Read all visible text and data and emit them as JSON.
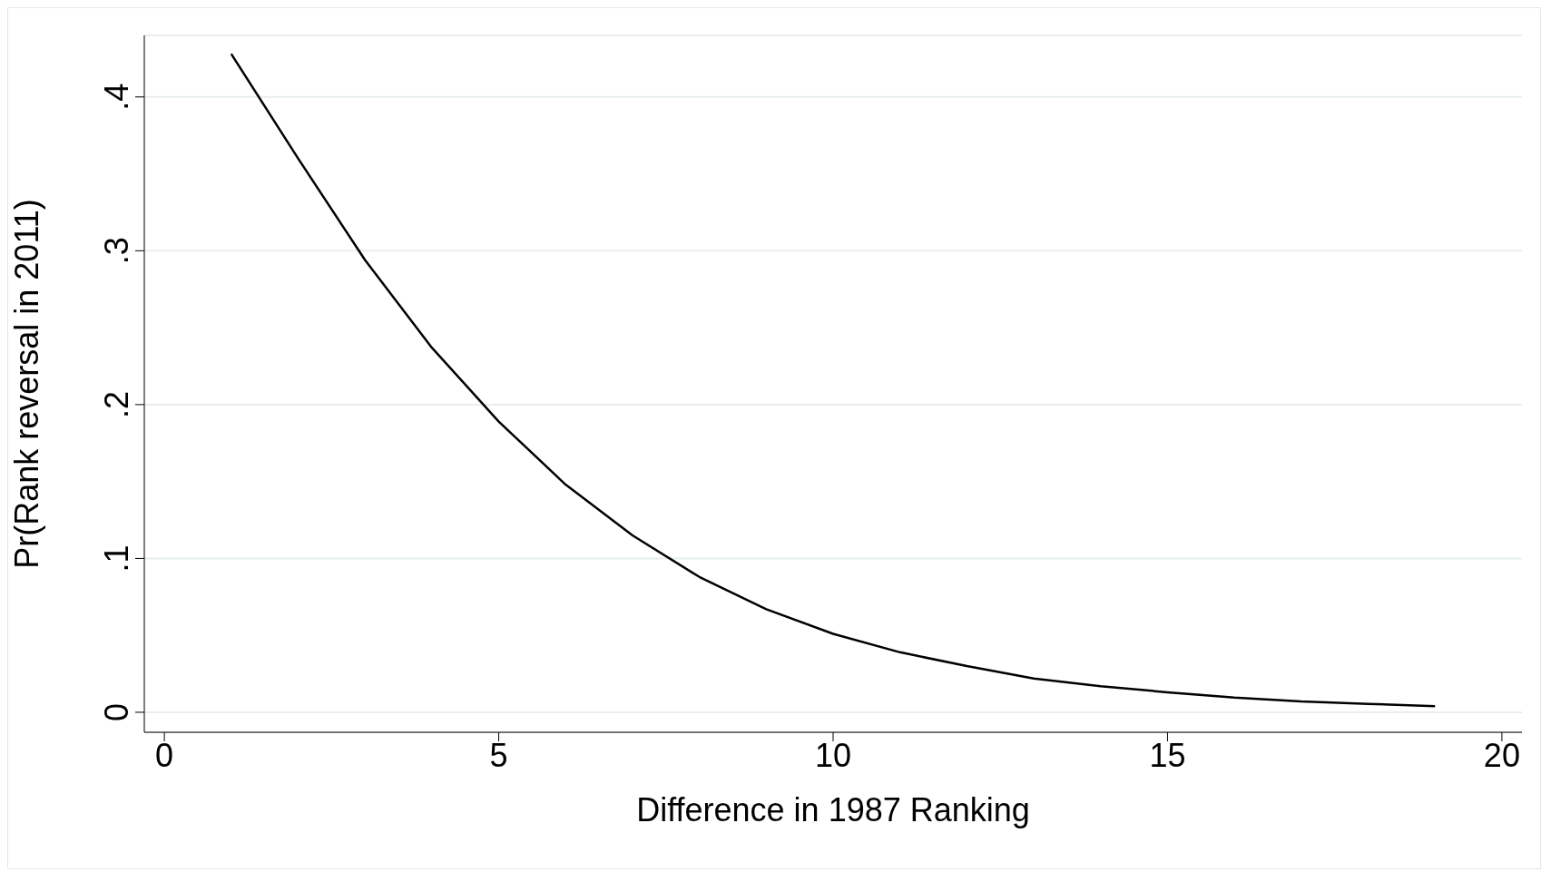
{
  "chart_data": {
    "type": "line",
    "xlabel": "Difference in 1987 Ranking",
    "ylabel": "Pr(Rank reversal in 2011)",
    "x": [
      1,
      2,
      3,
      4,
      5,
      6,
      7,
      8,
      9,
      10,
      11,
      12,
      13,
      14,
      15,
      16,
      17,
      18,
      19
    ],
    "series": [
      {
        "color": "#000000",
        "values": [
          0.428,
          0.36,
          0.294,
          0.237,
          0.189,
          0.148,
          0.115,
          0.088,
          0.067,
          0.051,
          0.039,
          0.03,
          0.022,
          0.017,
          0.013,
          0.0095,
          0.007,
          0.0055,
          0.004
        ]
      }
    ],
    "xlim": [
      -0.3,
      20.3
    ],
    "xticks": [
      0,
      5,
      10,
      15,
      20
    ],
    "ylim": [
      -0.013,
      0.44
    ],
    "yticks": [
      0,
      {
        "value": 0.1,
        "label": ".1"
      },
      {
        "value": 0.2,
        "label": ".2"
      },
      {
        "value": 0.3,
        "label": ".3"
      },
      {
        "value": 0.4,
        "label": ".4"
      }
    ],
    "grid": "y",
    "marker": "none",
    "line_style": "solid",
    "legend": false
  }
}
